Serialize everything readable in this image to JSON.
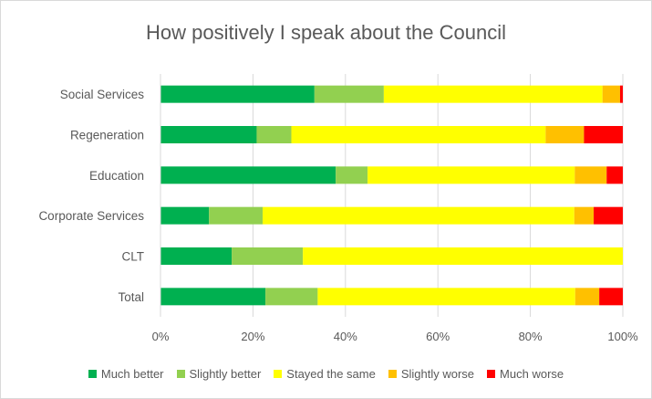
{
  "chart_data": {
    "type": "bar",
    "orientation": "horizontal",
    "stacked": "percent",
    "title": "How positively I speak about the Council",
    "categories": [
      "Social Services",
      "Regeneration",
      "Education",
      "Corporate Services",
      "CLT",
      "Total"
    ],
    "series": [
      {
        "name": "Much better",
        "color": "#00b050",
        "values": [
          33.3,
          20.8,
          37.9,
          10.5,
          15.4,
          22.7
        ]
      },
      {
        "name": "Slightly better",
        "color": "#92d050",
        "values": [
          15.0,
          7.5,
          6.9,
          11.6,
          15.4,
          11.3
        ]
      },
      {
        "name": "Stayed the same",
        "color": "#ffff00",
        "values": [
          47.3,
          55.0,
          44.8,
          67.4,
          69.2,
          55.7
        ]
      },
      {
        "name": "Slightly worse",
        "color": "#ffc000",
        "values": [
          3.8,
          8.3,
          6.9,
          4.2,
          0,
          5.2
        ]
      },
      {
        "name": "Much worse",
        "color": "#ff0000",
        "values": [
          0.6,
          8.4,
          3.5,
          6.3,
          0,
          5.1
        ]
      }
    ],
    "xticks": [
      "0%",
      "20%",
      "40%",
      "60%",
      "80%",
      "100%"
    ],
    "xlim": [
      0,
      100
    ],
    "grid": true,
    "legend_position": "bottom"
  }
}
